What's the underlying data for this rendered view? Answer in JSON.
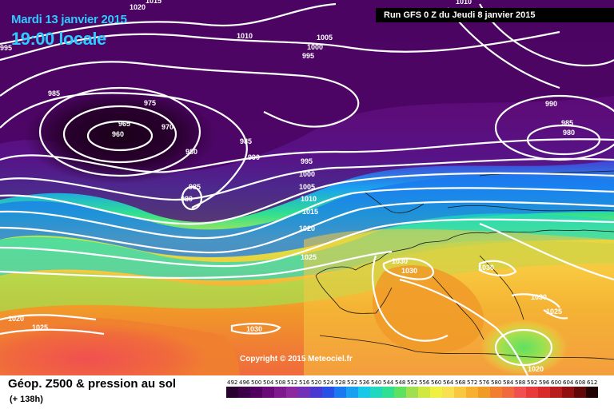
{
  "header": {
    "date": "Mardi 13 janvier 2015",
    "time": "19:00 locale",
    "run": "Run GFS 0 Z du Jeudi 8 janvier 2015"
  },
  "copyright": "Copyright © 2015 Meteociel.fr",
  "footer": {
    "title": "Géop. Z500 & pression au sol",
    "forecast_hour": "(+ 138h)"
  },
  "legend": {
    "values": [
      "492",
      "496",
      "500",
      "504",
      "508",
      "512",
      "516",
      "520",
      "524",
      "528",
      "532",
      "536",
      "540",
      "544",
      "548",
      "552",
      "556",
      "560",
      "564",
      "568",
      "572",
      "576",
      "580",
      "584",
      "588",
      "592",
      "596",
      "600",
      "604",
      "608",
      "612"
    ],
    "colors": [
      "#2a0030",
      "#3c0048",
      "#520060",
      "#6a0a78",
      "#7e1a8e",
      "#8c28a0",
      "#7030b8",
      "#4a38d0",
      "#2850e6",
      "#1a78f0",
      "#1aa0f0",
      "#18c8e8",
      "#20d8c0",
      "#30e090",
      "#60e060",
      "#a0e050",
      "#d0e840",
      "#f0f040",
      "#f8e050",
      "#f8c840",
      "#f8b030",
      "#f09a28",
      "#f08030",
      "#f06a3c",
      "#f05050",
      "#e83a3a",
      "#d82a2a",
      "#b81c1c",
      "#901010",
      "#600808",
      "#200000"
    ]
  },
  "isobars": [
    {
      "label": "1020"
    },
    {
      "label": "1015"
    },
    {
      "label": "995"
    },
    {
      "label": "985"
    },
    {
      "label": "975"
    },
    {
      "label": "965"
    },
    {
      "label": "960"
    },
    {
      "label": "970"
    },
    {
      "label": "980"
    },
    {
      "label": "985"
    },
    {
      "label": "980"
    },
    {
      "label": "1010"
    },
    {
      "label": "1005"
    },
    {
      "label": "1000"
    },
    {
      "label": "995"
    },
    {
      "label": "985"
    },
    {
      "label": "990"
    },
    {
      "label": "995"
    },
    {
      "label": "1000"
    },
    {
      "label": "1005"
    },
    {
      "label": "1010"
    },
    {
      "label": "1015"
    },
    {
      "label": "1020"
    },
    {
      "label": "1025"
    },
    {
      "label": "1030"
    },
    {
      "label": "1030"
    },
    {
      "label": "1030"
    },
    {
      "label": "1030"
    },
    {
      "label": "1025"
    },
    {
      "label": "1020"
    },
    {
      "label": "1020"
    },
    {
      "label": "1025"
    },
    {
      "label": "1030"
    },
    {
      "label": "990"
    },
    {
      "label": "985"
    },
    {
      "label": "980"
    },
    {
      "label": "1010"
    }
  ]
}
